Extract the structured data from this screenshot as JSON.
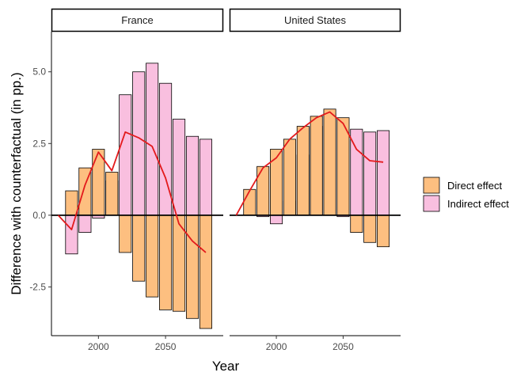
{
  "chart_data": {
    "type": "bar",
    "xlabel": "Year",
    "ylabel": "Difference with counterfactual (in pp.)",
    "ylim": [
      -4.2,
      6.4
    ],
    "yticks": [
      -2.5,
      0.0,
      2.5,
      5.0
    ],
    "ytick_labels": [
      "-2.5",
      "0.0",
      "2.5",
      "5.0"
    ],
    "xlim": [
      1965,
      2093
    ],
    "xticks": [
      2000,
      2050
    ],
    "xtick_labels": [
      "2000",
      "2050"
    ],
    "grid": false,
    "legend_position": "right",
    "colors": {
      "direct": "#FDBF80",
      "indirect": "#F9BFDF",
      "total_line": "#E31A1C",
      "zero_line": "#000000"
    },
    "legend": [
      {
        "key": "direct",
        "label": "Direct effect"
      },
      {
        "key": "indirect",
        "label": "Indirect effect"
      }
    ],
    "bar_width_years": 9,
    "panels": [
      {
        "label": "France",
        "x": [
          1980,
          1990,
          2000,
          2010,
          2020,
          2030,
          2040,
          2050,
          2060,
          2070,
          2080
        ],
        "direct": [
          0.85,
          1.65,
          2.3,
          1.5,
          -1.3,
          -2.3,
          -2.85,
          -3.3,
          -3.35,
          -3.6,
          -3.95
        ],
        "indirect": [
          -1.35,
          -0.6,
          -0.1,
          1.2,
          4.2,
          5.0,
          5.3,
          4.6,
          3.35,
          2.75,
          2.65
        ],
        "total_line_x": [
          1970,
          1980,
          1990,
          2000,
          2010,
          2020,
          2030,
          2040,
          2050,
          2060,
          2070,
          2080
        ],
        "total_line": [
          0.0,
          -0.5,
          1.05,
          2.2,
          1.55,
          2.9,
          2.7,
          2.4,
          1.3,
          -0.3,
          -0.9,
          -1.3
        ]
      },
      {
        "label": "United States",
        "x": [
          1980,
          1990,
          2000,
          2010,
          2020,
          2030,
          2040,
          2050,
          2060,
          2070,
          2080
        ],
        "direct": [
          0.9,
          1.7,
          2.3,
          2.65,
          3.1,
          3.45,
          3.7,
          3.4,
          -0.6,
          -0.95,
          -1.1
        ],
        "indirect": [
          0.0,
          -0.05,
          -0.3,
          0.5,
          2.1,
          3.1,
          3.55,
          -0.05,
          3.0,
          2.9,
          2.95
        ],
        "total_line_x": [
          1970,
          1980,
          1990,
          2000,
          2010,
          2020,
          2030,
          2040,
          2050,
          2060,
          2070,
          2080
        ],
        "total_line": [
          0.0,
          0.85,
          1.65,
          2.0,
          2.65,
          3.05,
          3.4,
          3.6,
          3.2,
          2.3,
          1.9,
          1.85
        ]
      }
    ]
  }
}
